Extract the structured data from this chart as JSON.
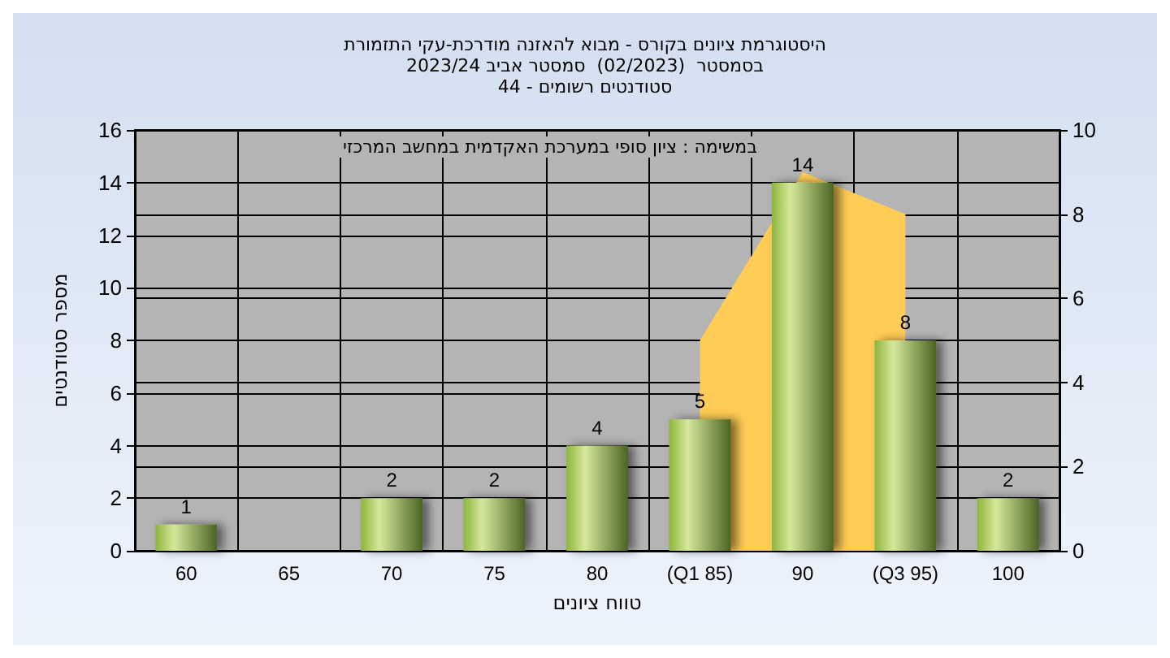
{
  "chart_data": {
    "type": "bar",
    "title": "היסטוגרמת ציונים בקורס - מבוא להאזנה מודרכת-עקי התזמורת\nבסמסטר  (02/2023)  סמסטר אביב 2023/24\nסטודנטים רשומים - 44",
    "xlabel": "טווח ציונים",
    "ylabel": "מספר סטודנטים",
    "annotations": [
      "במשימה : ציון סופי במערכת האקדמית במחשב המרכזי"
    ],
    "categories": [
      "60",
      "65",
      "70",
      "75",
      "80",
      "(Q1 85)",
      "90",
      "(Q3 95)",
      "100"
    ],
    "series": [
      {
        "type": "area",
        "axis": "y2",
        "color": "#ffcc55",
        "values": [
          null,
          null,
          null,
          null,
          null,
          5,
          9,
          8,
          null
        ]
      },
      {
        "color": "#8db53c",
        "values": [
          1,
          0,
          2,
          2,
          4,
          5,
          14,
          8,
          2
        ],
        "value_labels": [
          "1",
          null,
          "2",
          "2",
          "4",
          "5",
          "14",
          "8",
          "2"
        ]
      }
    ],
    "ylim": [
      0,
      16
    ],
    "yticks": [
      0,
      2,
      4,
      6,
      8,
      10,
      12,
      14,
      16
    ],
    "y2lim": [
      0,
      10
    ],
    "y2ticks": [
      0,
      2,
      4,
      6,
      8,
      10
    ],
    "grid": true
  }
}
